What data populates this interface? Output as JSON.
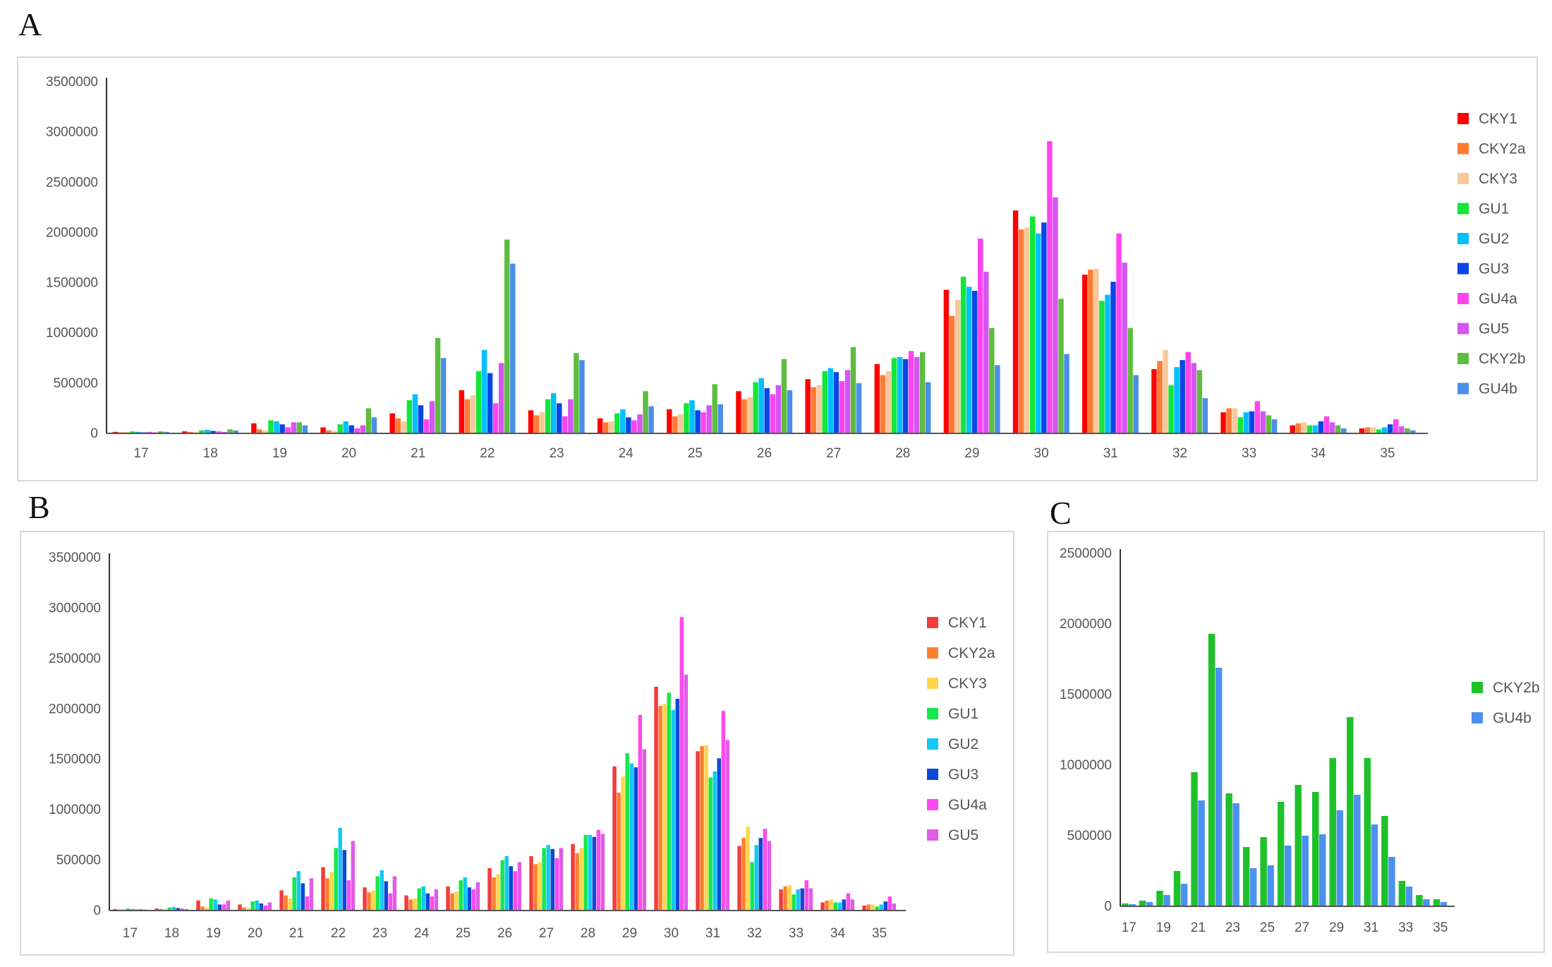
{
  "figure": {
    "label_a": "A",
    "label_b": "B",
    "label_c": "C"
  },
  "chart_data": [
    {
      "id": "A",
      "type": "bar",
      "categories": [
        "17",
        "18",
        "19",
        "20",
        "21",
        "22",
        "23",
        "24",
        "25",
        "26",
        "27",
        "28",
        "29",
        "30",
        "31",
        "32",
        "33",
        "34",
        "35"
      ],
      "series": [
        {
          "name": "CKY1",
          "color": "#ff0000",
          "values": [
            15000,
            20000,
            100000,
            60000,
            200000,
            430000,
            230000,
            150000,
            240000,
            420000,
            540000,
            690000,
            1430000,
            2220000,
            1580000,
            640000,
            210000,
            80000,
            50000
          ]
        },
        {
          "name": "CKY2a",
          "color": "#ff7a33",
          "values": [
            10000,
            15000,
            40000,
            30000,
            150000,
            340000,
            180000,
            110000,
            170000,
            340000,
            460000,
            580000,
            1170000,
            2030000,
            1630000,
            720000,
            250000,
            100000,
            60000
          ]
        },
        {
          "name": "CKY3",
          "color": "#f7c89a",
          "values": [
            15000,
            10000,
            30000,
            25000,
            120000,
            380000,
            210000,
            120000,
            190000,
            360000,
            480000,
            620000,
            1330000,
            2050000,
            1640000,
            830000,
            250000,
            110000,
            60000
          ]
        },
        {
          "name": "GU1",
          "color": "#11e639",
          "values": [
            20000,
            30000,
            130000,
            90000,
            330000,
            620000,
            340000,
            200000,
            300000,
            510000,
            620000,
            750000,
            1560000,
            2160000,
            1320000,
            480000,
            160000,
            80000,
            40000
          ]
        },
        {
          "name": "GU2",
          "color": "#00bfff",
          "values": [
            15000,
            35000,
            120000,
            120000,
            390000,
            830000,
            400000,
            240000,
            330000,
            550000,
            650000,
            760000,
            1460000,
            1990000,
            1380000,
            660000,
            210000,
            80000,
            60000
          ]
        },
        {
          "name": "GU3",
          "color": "#0a46e6",
          "values": [
            10000,
            25000,
            90000,
            80000,
            280000,
            600000,
            300000,
            160000,
            230000,
            450000,
            610000,
            740000,
            1420000,
            2100000,
            1510000,
            730000,
            220000,
            120000,
            90000
          ]
        },
        {
          "name": "GU4a",
          "color": "#ff44ee",
          "values": [
            15000,
            20000,
            60000,
            50000,
            140000,
            300000,
            170000,
            130000,
            210000,
            390000,
            520000,
            820000,
            1940000,
            2910000,
            1990000,
            810000,
            320000,
            170000,
            140000
          ]
        },
        {
          "name": "GU5",
          "color": "#d555f2",
          "values": [
            10000,
            15000,
            110000,
            80000,
            320000,
            700000,
            340000,
            190000,
            280000,
            480000,
            630000,
            760000,
            1610000,
            2350000,
            1700000,
            700000,
            220000,
            110000,
            70000
          ]
        },
        {
          "name": "CKY2b",
          "color": "#5ebc3f",
          "values": [
            20000,
            40000,
            110000,
            250000,
            950000,
            1930000,
            800000,
            420000,
            490000,
            740000,
            860000,
            810000,
            1050000,
            1340000,
            1050000,
            630000,
            180000,
            80000,
            50000
          ]
        },
        {
          "name": "GU4b",
          "color": "#4b8ee8",
          "values": [
            15000,
            30000,
            80000,
            160000,
            750000,
            1690000,
            730000,
            270000,
            290000,
            430000,
            500000,
            510000,
            680000,
            790000,
            580000,
            350000,
            140000,
            50000,
            30000
          ]
        }
      ],
      "ylim": [
        0,
        3500000
      ],
      "yticks": [
        "0",
        "500000",
        "1000000",
        "1500000",
        "2000000",
        "2500000",
        "3000000",
        "3500000"
      ],
      "title": "",
      "xlabel": "",
      "ylabel": "",
      "legend": "right"
    },
    {
      "id": "B",
      "type": "bar",
      "categories": [
        "17",
        "18",
        "19",
        "20",
        "21",
        "22",
        "23",
        "24",
        "25",
        "26",
        "27",
        "28",
        "29",
        "30",
        "31",
        "32",
        "33",
        "34",
        "35"
      ],
      "series": [
        {
          "name": "CKY1",
          "color": "#f23b3b",
          "values": [
            15000,
            20000,
            100000,
            60000,
            200000,
            430000,
            230000,
            150000,
            240000,
            420000,
            540000,
            660000,
            1430000,
            2220000,
            1580000,
            640000,
            210000,
            80000,
            50000
          ]
        },
        {
          "name": "CKY2a",
          "color": "#ff7f2f",
          "values": [
            10000,
            15000,
            40000,
            30000,
            150000,
            320000,
            180000,
            110000,
            170000,
            330000,
            460000,
            570000,
            1170000,
            2030000,
            1630000,
            720000,
            240000,
            100000,
            60000
          ]
        },
        {
          "name": "CKY3",
          "color": "#ffd54a",
          "values": [
            15000,
            10000,
            30000,
            25000,
            120000,
            380000,
            200000,
            120000,
            190000,
            360000,
            480000,
            620000,
            1330000,
            2050000,
            1640000,
            830000,
            250000,
            110000,
            60000
          ]
        },
        {
          "name": "GU1",
          "color": "#16e84a",
          "values": [
            20000,
            30000,
            120000,
            90000,
            330000,
            620000,
            340000,
            220000,
            300000,
            500000,
            620000,
            750000,
            1560000,
            2160000,
            1320000,
            480000,
            160000,
            80000,
            40000
          ]
        },
        {
          "name": "GU2",
          "color": "#11c9f2",
          "values": [
            15000,
            35000,
            110000,
            100000,
            390000,
            820000,
            400000,
            240000,
            330000,
            540000,
            650000,
            750000,
            1460000,
            1990000,
            1380000,
            650000,
            210000,
            80000,
            60000
          ]
        },
        {
          "name": "GU3",
          "color": "#0b49d9",
          "values": [
            10000,
            25000,
            60000,
            70000,
            270000,
            600000,
            290000,
            170000,
            230000,
            440000,
            610000,
            730000,
            1420000,
            2100000,
            1510000,
            720000,
            220000,
            110000,
            90000
          ]
        },
        {
          "name": "GU4a",
          "color": "#ff49ee",
          "values": [
            15000,
            20000,
            60000,
            50000,
            140000,
            300000,
            170000,
            140000,
            210000,
            390000,
            520000,
            800000,
            1940000,
            2910000,
            1980000,
            810000,
            300000,
            170000,
            140000
          ]
        },
        {
          "name": "GU5",
          "color": "#e15ce8",
          "values": [
            10000,
            15000,
            100000,
            80000,
            320000,
            690000,
            340000,
            210000,
            280000,
            480000,
            620000,
            760000,
            1600000,
            2340000,
            1690000,
            690000,
            220000,
            110000,
            70000
          ]
        }
      ],
      "ylim": [
        0,
        3500000
      ],
      "yticks": [
        "0",
        "500000",
        "1000000",
        "1500000",
        "2000000",
        "2500000",
        "3000000",
        "3500000"
      ],
      "title": "",
      "xlabel": "",
      "ylabel": "",
      "legend": "right"
    },
    {
      "id": "C",
      "type": "bar",
      "categories": [
        "17",
        "18",
        "19",
        "20",
        "21",
        "22",
        "23",
        "24",
        "25",
        "26",
        "27",
        "28",
        "29",
        "30",
        "31",
        "32",
        "33",
        "34",
        "35"
      ],
      "xtick_labels": [
        "17",
        "",
        "19",
        "",
        "21",
        "",
        "23",
        "",
        "25",
        "",
        "27",
        "",
        "29",
        "",
        "31",
        "",
        "33",
        "",
        "35"
      ],
      "series": [
        {
          "name": "CKY2b",
          "color": "#1fc12b",
          "values": [
            20000,
            40000,
            110000,
            250000,
            950000,
            1930000,
            800000,
            420000,
            490000,
            740000,
            860000,
            810000,
            1050000,
            1340000,
            1050000,
            640000,
            180000,
            80000,
            50000
          ]
        },
        {
          "name": "GU4b",
          "color": "#4d91f0",
          "values": [
            15000,
            30000,
            80000,
            160000,
            750000,
            1690000,
            730000,
            270000,
            290000,
            430000,
            500000,
            510000,
            680000,
            790000,
            580000,
            350000,
            140000,
            50000,
            30000
          ]
        }
      ],
      "ylim": [
        0,
        2500000
      ],
      "yticks": [
        "0",
        "500000",
        "1000000",
        "1500000",
        "2000000",
        "2500000"
      ],
      "title": "",
      "xlabel": "",
      "ylabel": "",
      "legend": "right"
    }
  ]
}
